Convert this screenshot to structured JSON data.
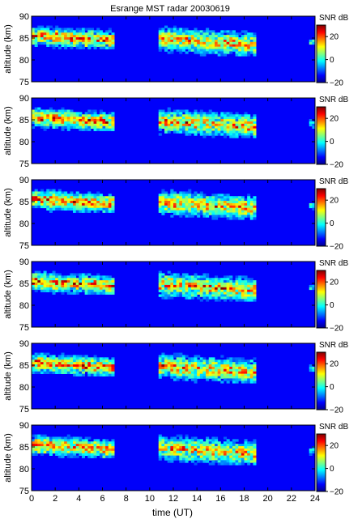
{
  "chart_data": {
    "type": "heatmap",
    "title": "Esrange MST radar 20030619",
    "xlabel": "time (UT)",
    "ylabel": "altitude (km)",
    "xlim": [
      0,
      24
    ],
    "ylim": [
      75,
      90
    ],
    "x_ticks": [
      "0",
      "2",
      "4",
      "6",
      "8",
      "10",
      "12",
      "14",
      "16",
      "18",
      "20",
      "22",
      "24"
    ],
    "y_ticks": [
      "75",
      "80",
      "85",
      "90"
    ],
    "colorbar": {
      "label": "SNR dB",
      "range": [
        -20,
        30
      ],
      "ticks": [
        "20",
        "0",
        "−20"
      ],
      "colormap": "jet"
    },
    "panel_count": 6,
    "features": {
      "echo_layers": [
        {
          "t_start": 0.0,
          "t_end": 7.0,
          "alt_top": 88.5,
          "alt_bottom": 82.5,
          "peak_snr": 25
        },
        {
          "t_start": 10.8,
          "t_end": 19.0,
          "alt_top": 88.5,
          "alt_bottom": 81.0,
          "peak_snr": 22
        },
        {
          "t_start": 23.5,
          "t_end": 24.0,
          "alt_top": 85.5,
          "alt_bottom": 83.0,
          "peak_snr": 5
        }
      ],
      "background_snr": -15
    }
  }
}
